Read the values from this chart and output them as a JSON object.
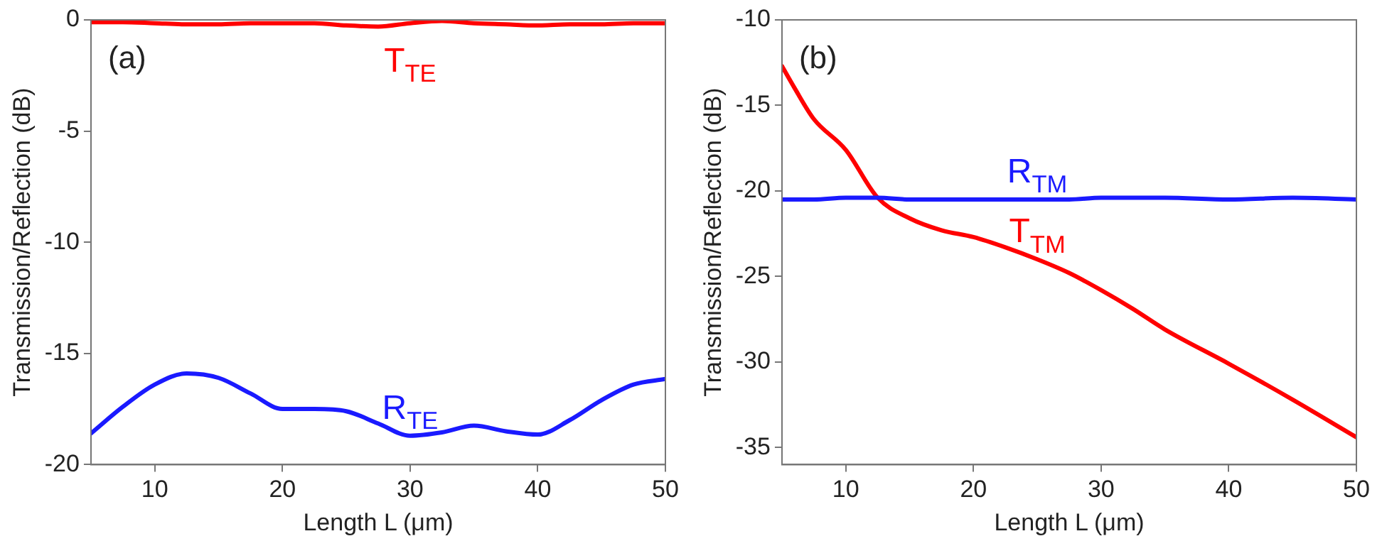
{
  "chart_data": [
    {
      "type": "line",
      "xlabel": "Length L (μm)",
      "ylabel": "Transmission/Reflection (dB)",
      "annotations": [
        "(a)"
      ],
      "xlim": [
        5,
        50
      ],
      "xticks": [
        10,
        20,
        30,
        40,
        50
      ],
      "ylim": [
        -20,
        0
      ],
      "yticks": [
        -20,
        -15,
        -10,
        -5,
        0
      ],
      "grid": false,
      "legend": false,
      "marker": "none",
      "line_style": "solid",
      "x": [
        5,
        7.5,
        10,
        12.5,
        15,
        17.5,
        20,
        22.5,
        25,
        27.5,
        30,
        32.5,
        35,
        37.5,
        40,
        42.5,
        45,
        47.5,
        50
      ],
      "series": [
        {
          "name": "T$_{TE}$",
          "color": "#ff0000",
          "values": [
            -0.1,
            -0.1,
            -0.15,
            -0.2,
            -0.2,
            -0.15,
            -0.15,
            -0.15,
            -0.25,
            -0.3,
            -0.15,
            -0.05,
            -0.15,
            -0.2,
            -0.25,
            -0.2,
            -0.2,
            -0.15,
            -0.15
          ]
        },
        {
          "name": "R$_{TE}$",
          "color": "#1a1aff",
          "values": [
            -18.6,
            -17.4,
            -16.4,
            -15.9,
            -16.1,
            -16.8,
            -17.5,
            -17.5,
            -17.6,
            -18.15,
            -18.7,
            -18.55,
            -18.25,
            -18.5,
            -18.65,
            -18.0,
            -17.1,
            -16.4,
            -16.15
          ]
        }
      ]
    },
    {
      "type": "line",
      "xlabel": "Length L (μm)",
      "ylabel": "Transmission/Reflection (dB)",
      "annotations": [
        "(b)"
      ],
      "xlim": [
        5,
        50
      ],
      "xticks": [
        10,
        20,
        30,
        40,
        50
      ],
      "ylim": [
        -36,
        -10
      ],
      "yticks": [
        -35,
        -30,
        -25,
        -20,
        -15,
        -10
      ],
      "grid": false,
      "legend": false,
      "marker": "none",
      "line_style": "solid",
      "x": [
        5,
        6,
        7.5,
        10,
        12.5,
        15,
        17.5,
        20,
        22.5,
        25,
        27.5,
        30,
        32.5,
        35,
        40,
        45,
        50
      ],
      "series": [
        {
          "name": "R$_{TM}$",
          "color": "#1a1aff",
          "values": [
            -20.5,
            -20.5,
            -20.5,
            -20.4,
            -20.4,
            -20.5,
            -20.5,
            -20.5,
            -20.5,
            -20.5,
            -20.5,
            -20.4,
            -20.4,
            -20.4,
            -20.5,
            -20.4,
            -20.5
          ]
        },
        {
          "name": "T$_{TM}$",
          "color": "#ff0000",
          "values": [
            -12.7,
            -14.0,
            -15.8,
            -17.6,
            -20.4,
            -21.6,
            -22.3,
            -22.7,
            -23.3,
            -24.0,
            -24.8,
            -25.8,
            -26.9,
            -28.1,
            -30.1,
            -32.2,
            -34.4
          ]
        }
      ]
    }
  ]
}
